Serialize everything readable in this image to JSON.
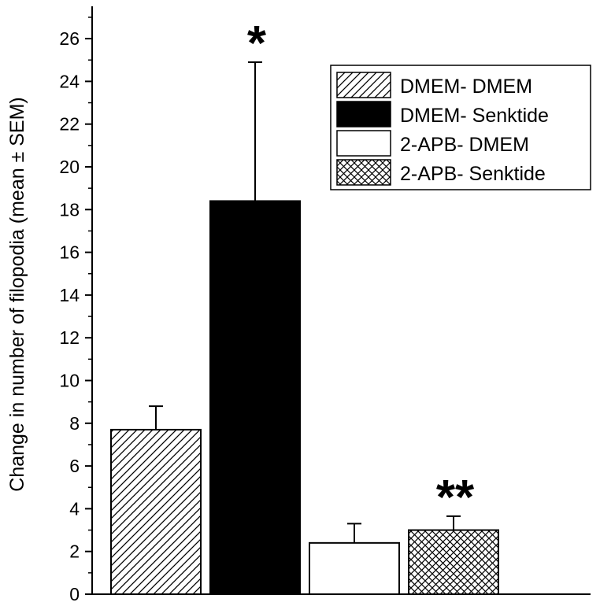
{
  "chart_data": {
    "type": "bar",
    "title": "",
    "ylabel": "Change in number of filopodia (mean ± SEM)",
    "xlabel": "",
    "ylim": [
      0,
      27
    ],
    "yticks": [
      0,
      2,
      4,
      6,
      8,
      10,
      12,
      14,
      16,
      18,
      20,
      22,
      24,
      26
    ],
    "ytick_labels": [
      "0",
      "2",
      "4",
      "6",
      "8",
      "10",
      "12",
      "14",
      "16",
      "18",
      "20",
      "22",
      "24",
      "26"
    ],
    "series": [
      {
        "name": "DMEM- DMEM",
        "value": 7.7,
        "sem": 1.1,
        "fill": "hatch-diagonal",
        "significance": ""
      },
      {
        "name": "DMEM- Senktide",
        "value": 18.4,
        "sem": 6.5,
        "fill": "solid-black",
        "significance": "*"
      },
      {
        "name": "2-APB- DMEM",
        "value": 2.4,
        "sem": 0.9,
        "fill": "white",
        "significance": ""
      },
      {
        "name": "2-APB- Senktide",
        "value": 3.0,
        "sem": 0.65,
        "fill": "crosshatch",
        "significance": "**"
      }
    ],
    "legend_position": "top-right",
    "grid": false
  }
}
